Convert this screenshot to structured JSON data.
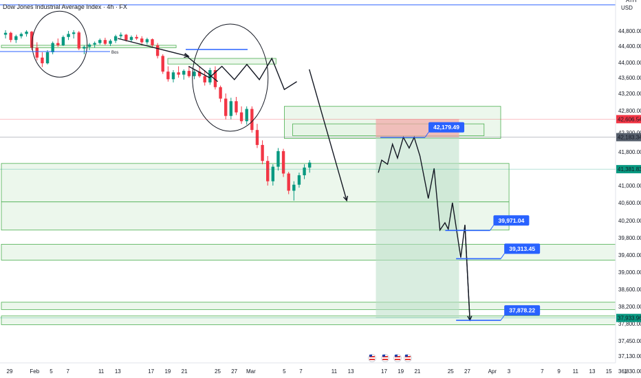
{
  "header": {
    "title": "Dow Jones Industrial Average Index · 4h · FX",
    "currency": "USD",
    "top_right": "ATH"
  },
  "colors": {
    "bull": "#089981",
    "bear": "#f23645",
    "zone_fill": "#e6f4e6",
    "zone_stroke": "#4caf50",
    "blue": "#2962ff",
    "red_label": "#f23645",
    "dark_label": "#555e6b",
    "green_label": "#089981"
  },
  "annotations": {
    "bos": "Bos"
  },
  "chart_data": {
    "type": "candlestick",
    "y_ticks": [
      "44,800.00",
      "44,400.00",
      "44,000.00",
      "43,600.00",
      "43,200.00",
      "42,800.00",
      "42,300.00",
      "41,800.00",
      "41,400.00",
      "41,000.00",
      "40,600.00",
      "40,200.00",
      "39,800.00",
      "39,400.00",
      "39,000.00",
      "38,600.00",
      "38,200.00",
      "37,800.00",
      "37,450.00",
      "37,130.00",
      "36,830.00"
    ],
    "y_tick_values": [
      44800,
      44400,
      44000,
      43600,
      43200,
      42800,
      42300,
      41800,
      41400,
      41000,
      40600,
      40200,
      39800,
      39400,
      39000,
      38600,
      38200,
      37800,
      37450,
      37130,
      36830
    ],
    "x_labels": [
      {
        "label": "29",
        "t": 0
      },
      {
        "label": "Feb",
        "t": 3
      },
      {
        "label": "5",
        "t": 5
      },
      {
        "label": "7",
        "t": 7
      },
      {
        "label": "11",
        "t": 11
      },
      {
        "label": "13",
        "t": 13
      },
      {
        "label": "17",
        "t": 17
      },
      {
        "label": "19",
        "t": 19
      },
      {
        "label": "21",
        "t": 21
      },
      {
        "label": "25",
        "t": 25
      },
      {
        "label": "27",
        "t": 27
      },
      {
        "label": "Mar",
        "t": 29
      },
      {
        "label": "5",
        "t": 33
      },
      {
        "label": "7",
        "t": 35
      },
      {
        "label": "11",
        "t": 39
      },
      {
        "label": "13",
        "t": 41
      },
      {
        "label": "17",
        "t": 45
      },
      {
        "label": "19",
        "t": 47
      },
      {
        "label": "21",
        "t": 49
      },
      {
        "label": "25",
        "t": 53
      },
      {
        "label": "27",
        "t": 55
      },
      {
        "label": "Apr",
        "t": 58
      },
      {
        "label": "3",
        "t": 60
      },
      {
        "label": "7",
        "t": 64
      },
      {
        "label": "9",
        "t": 66
      },
      {
        "label": "11",
        "t": 68
      },
      {
        "label": "13",
        "t": 70
      },
      {
        "label": "15",
        "t": 72
      },
      {
        "label": "1",
        "t": 74
      }
    ],
    "price_labels": [
      {
        "text": "42,606.54",
        "value": 42606.54,
        "style": "red"
      },
      {
        "text": "42,183.34",
        "value": 42183.34,
        "style": "dark"
      },
      {
        "text": "41,381.83",
        "value": 41381.83,
        "style": "green"
      },
      {
        "text": "37,933.96",
        "value": 37933.96,
        "style": "green"
      }
    ],
    "target_labels": [
      {
        "text": "42,179.49",
        "value": 42179.49,
        "t": 50.5
      },
      {
        "text": "39,971.04",
        "value": 39971.04,
        "t": 58.3
      },
      {
        "text": "39,313.45",
        "value": 39313.45,
        "t": 59.6
      },
      {
        "text": "37,878.22",
        "value": 37878.22,
        "t": 59.6
      }
    ],
    "candles": [
      [
        44700,
        44820,
        44600,
        44750
      ],
      [
        44750,
        44780,
        44500,
        44560
      ],
      [
        44560,
        44700,
        44480,
        44660
      ],
      [
        44660,
        44760,
        44600,
        44720
      ],
      [
        44720,
        44820,
        44650,
        44780
      ],
      [
        44780,
        44800,
        44300,
        44360
      ],
      [
        44360,
        44500,
        44050,
        44120
      ],
      [
        44120,
        44250,
        43880,
        43980
      ],
      [
        43980,
        44300,
        43950,
        44250
      ],
      [
        44250,
        44520,
        44200,
        44480
      ],
      [
        44480,
        44600,
        44380,
        44420
      ],
      [
        44420,
        44680,
        44400,
        44640
      ],
      [
        44640,
        44800,
        44560,
        44720
      ],
      [
        44720,
        44820,
        44600,
        44760
      ],
      [
        44760,
        44800,
        44300,
        44340
      ],
      [
        44340,
        44420,
        44200,
        44380
      ],
      [
        44380,
        44480,
        44300,
        44440
      ],
      [
        44440,
        44520,
        44360,
        44480
      ],
      [
        44480,
        44600,
        44440,
        44560
      ],
      [
        44560,
        44620,
        44420,
        44460
      ],
      [
        44460,
        44580,
        44400,
        44540
      ],
      [
        44540,
        44700,
        44480,
        44660
      ],
      [
        44660,
        44760,
        44600,
        44700
      ],
      [
        44700,
        44720,
        44520,
        44560
      ],
      [
        44560,
        44680,
        44520,
        44640
      ],
      [
        44640,
        44700,
        44560,
        44600
      ],
      [
        44600,
        44660,
        44460,
        44500
      ],
      [
        44500,
        44620,
        44440,
        44580
      ],
      [
        44580,
        44600,
        44380,
        44420
      ],
      [
        44420,
        44480,
        44100,
        44160
      ],
      [
        44160,
        44200,
        43700,
        43760
      ],
      [
        43760,
        43900,
        43500,
        43560
      ],
      [
        43560,
        43800,
        43480,
        43740
      ],
      [
        43740,
        43900,
        43600,
        43680
      ],
      [
        43680,
        43820,
        43550,
        43780
      ],
      [
        43780,
        43900,
        43600,
        43640
      ],
      [
        43640,
        43820,
        43560,
        43760
      ],
      [
        43760,
        43880,
        43600,
        43640
      ],
      [
        43640,
        43800,
        43400,
        43480
      ],
      [
        43480,
        43860,
        43420,
        43800
      ],
      [
        43800,
        43900,
        43300,
        43360
      ],
      [
        43360,
        43400,
        43000,
        43080
      ],
      [
        43080,
        43200,
        42600,
        42680
      ],
      [
        42680,
        43100,
        42600,
        43020
      ],
      [
        43020,
        43120,
        42700,
        42760
      ],
      [
        42760,
        42900,
        42500,
        42560
      ],
      [
        42560,
        42900,
        42480,
        42840
      ],
      [
        42840,
        42900,
        42300,
        42360
      ],
      [
        42360,
        42500,
        41900,
        41980
      ],
      [
        41980,
        42100,
        41500,
        41580
      ],
      [
        41580,
        41700,
        41000,
        41100
      ],
      [
        41100,
        41500,
        41000,
        41440
      ],
      [
        41440,
        41900,
        41350,
        41820
      ],
      [
        41820,
        41880,
        41200,
        41280
      ],
      [
        41280,
        41320,
        40800,
        40880
      ],
      [
        40880,
        41100,
        40650,
        41020
      ],
      [
        41020,
        41300,
        40950,
        41240
      ],
      [
        41240,
        41500,
        41150,
        41420
      ],
      [
        41420,
        41600,
        41300,
        41540
      ]
    ],
    "zones": [
      {
        "t0": 34,
        "t1": 60,
        "y0": 42900,
        "y1": 42150
      },
      {
        "t0": 0,
        "t1": 61,
        "y0": 41520,
        "y1": 40620
      },
      {
        "t0": 0,
        "t1": 61,
        "y0": 40620,
        "y1": 39980
      },
      {
        "t0": 0,
        "t1": 79,
        "y0": 39650,
        "y1": 39280
      },
      {
        "t0": 0,
        "t1": 79,
        "y0": 38300,
        "y1": 38130
      },
      {
        "t0": 0,
        "t1": 79,
        "y0": 37980,
        "y1": 37780
      },
      {
        "t0": 0,
        "t1": 21,
        "y0": 44420,
        "y1": 44360
      },
      {
        "t0": 20,
        "t1": 33,
        "y0": 44100,
        "y1": 43960
      },
      {
        "t0": 35,
        "t1": 58,
        "y0": 42500,
        "y1": 42220
      }
    ],
    "position_box": {
      "t0": 45,
      "t1": 55,
      "entry": 42179.49,
      "stop": 42606.54,
      "target": 37933.96
    },
    "projection": [
      [
        45.3,
        41300
      ],
      [
        45.7,
        41600
      ],
      [
        46.4,
        41500
      ],
      [
        47.0,
        42000
      ],
      [
        47.6,
        41650
      ],
      [
        48.3,
        42180
      ],
      [
        49.0,
        41900
      ],
      [
        49.6,
        42180
      ],
      [
        50.3,
        41700
      ],
      [
        51.3,
        40700
      ],
      [
        52.0,
        41400
      ],
      [
        52.7,
        39980
      ],
      [
        53.3,
        40150
      ],
      [
        53.7,
        40000
      ],
      [
        54.2,
        40600
      ],
      [
        55.2,
        39340
      ],
      [
        55.7,
        40100
      ],
      [
        56.3,
        37880
      ]
    ],
    "drawn_arrows": [
      [
        [
          14,
          44600
        ],
        [
          22.5,
          44150
        ]
      ],
      [
        [
          37,
          43820
        ],
        [
          41.5,
          40650
        ]
      ]
    ],
    "structure_lines": [
      [
        [
          22,
          44200
        ],
        [
          26,
          43500
        ]
      ],
      [
        [
          22.5,
          43900
        ],
        [
          25,
          43600
        ],
        [
          26.5,
          43900
        ],
        [
          28,
          43550
        ],
        [
          29.5,
          43950
        ],
        [
          31,
          43550
        ],
        [
          32.5,
          44100
        ],
        [
          34,
          43300
        ],
        [
          35.5,
          43500
        ]
      ]
    ],
    "circles": [
      {
        "t": 7,
        "y": 44450,
        "rx": 40,
        "ry": 48
      },
      {
        "t": 27.5,
        "y": 43600,
        "rx": 55,
        "ry": 78
      }
    ]
  }
}
